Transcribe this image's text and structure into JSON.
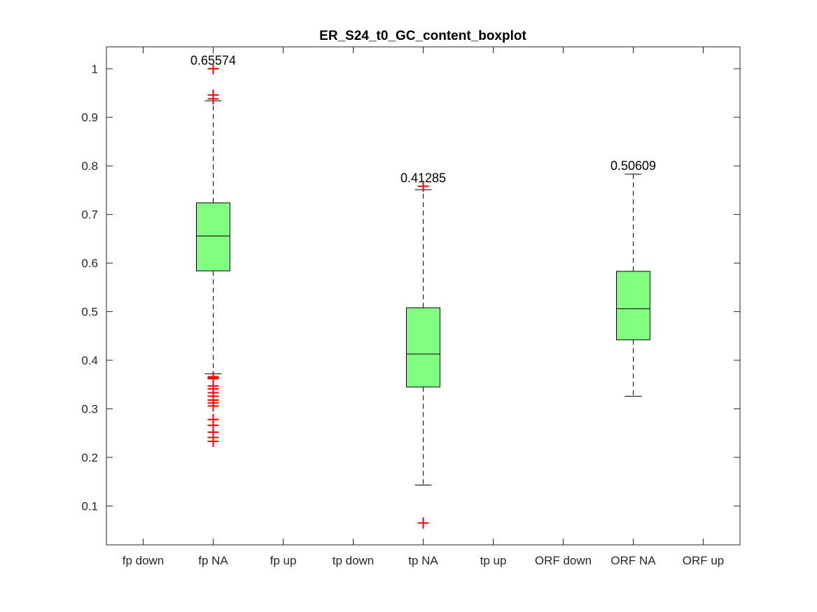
{
  "chart_data": {
    "type": "boxplot",
    "title": "ER_S24_t0_GC_content_boxplot",
    "xlabel": "",
    "ylabel": "",
    "ylim": [
      0.02,
      1.045
    ],
    "yticks": [
      0.1,
      0.2,
      0.3,
      0.4,
      0.5,
      0.6,
      0.7,
      0.8,
      0.9,
      1
    ],
    "ytick_labels": [
      "0.1",
      "0.2",
      "0.3",
      "0.4",
      "0.5",
      "0.6",
      "0.7",
      "0.8",
      "0.9",
      "1"
    ],
    "categories": [
      "fp down",
      "fp NA",
      "fp up",
      "tp down",
      "tp NA",
      "tp up",
      "ORF down",
      "ORF NA",
      "ORF up"
    ],
    "grid": false,
    "box_fill": "#80ff80",
    "outlier_color": "#ff0000",
    "boxes": [
      {
        "category": "fp NA",
        "median": 0.65574,
        "median_label": "0.65574",
        "q1": 0.584,
        "q3": 0.724,
        "whisker_low": 0.372,
        "whisker_high": 0.934,
        "outliers": [
          1.0,
          0.946,
          0.938,
          0.366,
          0.364,
          0.362,
          0.347,
          0.341,
          0.333,
          0.326,
          0.318,
          0.312,
          0.306,
          0.278,
          0.266,
          0.252,
          0.241,
          0.233
        ]
      },
      {
        "category": "tp NA",
        "median": 0.41285,
        "median_label": "0.41285",
        "q1": 0.345,
        "q3": 0.508,
        "whisker_low": 0.143,
        "whisker_high": 0.751,
        "outliers": [
          0.758,
          0.065
        ]
      },
      {
        "category": "ORF NA",
        "median": 0.50609,
        "median_label": "0.50609",
        "q1": 0.442,
        "q3": 0.583,
        "whisker_low": 0.326,
        "whisker_high": 0.783,
        "outliers": []
      }
    ]
  }
}
